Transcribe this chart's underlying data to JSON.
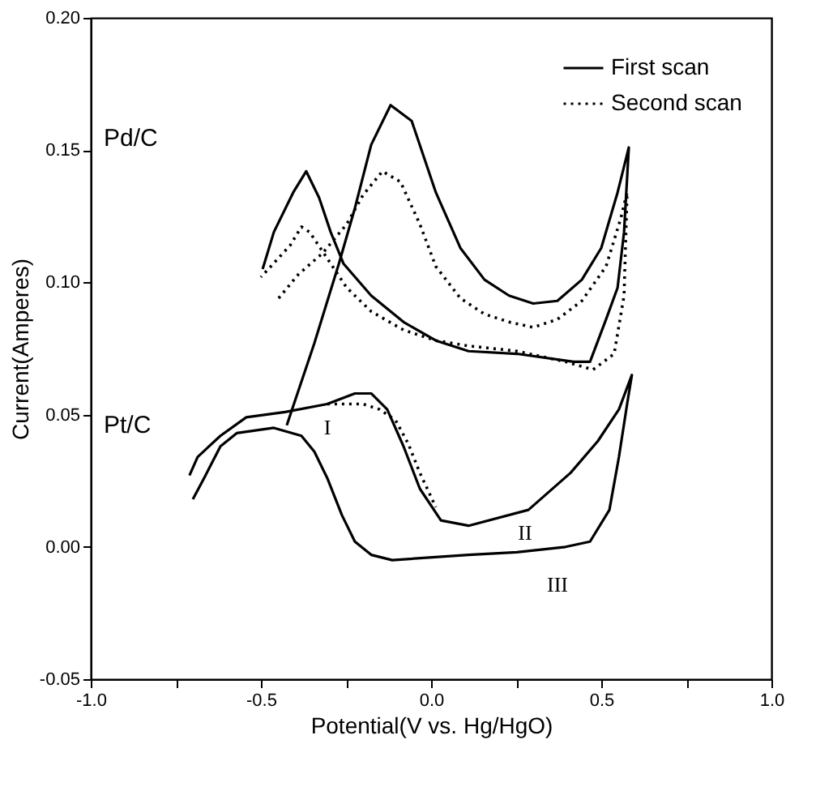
{
  "chart_data": {
    "type": "line",
    "xlabel": "Potential(V vs. Hg/HgO)",
    "ylabel": "Current(Amperes)",
    "xlim": [
      -1.0,
      1.0
    ],
    "xticks": [
      {
        "value": -1.0,
        "label": "-1.0"
      },
      {
        "value": -0.75,
        "label": null
      },
      {
        "value": -0.5,
        "label": "-0.5"
      },
      {
        "value": -0.25,
        "label": null
      },
      {
        "value": 0.0,
        "label": "0.0"
      },
      {
        "value": 0.25,
        "label": null
      },
      {
        "value": 0.5,
        "label": "0.5"
      },
      {
        "value": 0.75,
        "label": null
      },
      {
        "value": 1.0,
        "label": "1.0"
      }
    ],
    "ylim": [
      -0.05,
      0.2
    ],
    "yticks": [
      {
        "value": -0.05,
        "label": "-0.05"
      },
      {
        "value": 0.0,
        "label": "0.00"
      },
      {
        "value": 0.05,
        "label": "0.05"
      },
      {
        "value": 0.1,
        "label": "0.10"
      },
      {
        "value": 0.15,
        "label": "0.15"
      },
      {
        "value": 0.2,
        "label": "0.20"
      }
    ],
    "grid": false,
    "legend": "top right",
    "marker": "none",
    "series": [
      {
        "name": "First scan",
        "color": "#000000",
        "line_style": "solid",
        "x": [
          -0.424,
          -0.343,
          -0.271,
          -0.224,
          -0.176,
          -0.119,
          -0.057,
          0.014,
          0.086,
          0.157,
          0.229,
          0.3,
          0.371,
          0.443,
          0.5,
          0.548,
          0.581,
          0.567,
          0.548,
          0.514,
          0.467,
          0.419,
          0.252,
          0.11,
          0.014,
          -0.081,
          -0.176,
          -0.257,
          -0.295,
          -0.329,
          -0.367,
          -0.405,
          -0.462,
          -0.495
        ],
        "values": [
          0.046,
          0.077,
          0.107,
          0.128,
          0.152,
          0.167,
          0.161,
          0.134,
          0.113,
          0.101,
          0.095,
          0.092,
          0.093,
          0.101,
          0.113,
          0.134,
          0.151,
          0.119,
          0.098,
          0.086,
          0.07,
          0.07,
          0.073,
          0.074,
          0.078,
          0.085,
          0.095,
          0.107,
          0.119,
          0.132,
          0.142,
          0.134,
          0.119,
          0.105
        ]
      },
      {
        "name": "Second scan",
        "color": "#000000",
        "line_style": "dotted",
        "x": [
          -0.448,
          -0.39,
          -0.319,
          -0.248,
          -0.2,
          -0.143,
          -0.09,
          -0.033,
          0.014,
          0.086,
          0.157,
          0.229,
          0.3,
          0.371,
          0.443,
          0.514,
          0.557,
          0.576,
          0.567,
          0.538,
          0.476,
          0.395,
          0.252,
          0.11,
          0.014,
          -0.081,
          -0.176,
          -0.248,
          -0.31,
          -0.357,
          -0.381,
          -0.414,
          -0.471,
          -0.5
        ],
        "values": [
          0.094,
          0.103,
          0.111,
          0.122,
          0.133,
          0.142,
          0.138,
          0.122,
          0.106,
          0.094,
          0.088,
          0.085,
          0.083,
          0.086,
          0.093,
          0.106,
          0.124,
          0.134,
          0.095,
          0.073,
          0.067,
          0.07,
          0.074,
          0.076,
          0.078,
          0.082,
          0.089,
          0.098,
          0.11,
          0.119,
          0.121,
          0.114,
          0.106,
          0.102
        ]
      },
      {
        "color": "#000000",
        "line_style": "solid",
        "x": [
          -0.71,
          -0.686,
          -0.619,
          -0.543,
          -0.429,
          -0.305,
          -0.224,
          -0.176,
          -0.129,
          -0.081,
          -0.033,
          0.029,
          0.11,
          0.286,
          0.41,
          0.49,
          0.552,
          0.59,
          0.576,
          0.552,
          0.524,
          0.467,
          0.395,
          0.252,
          0.11,
          -0.114,
          -0.176,
          -0.224,
          -0.262,
          -0.305,
          -0.343,
          -0.381,
          -0.462,
          -0.571,
          -0.619,
          -0.667,
          -0.7
        ],
        "values": [
          0.027,
          0.034,
          0.042,
          0.049,
          0.051,
          0.054,
          0.058,
          0.058,
          0.052,
          0.038,
          0.022,
          0.01,
          0.008,
          0.014,
          0.028,
          0.04,
          0.052,
          0.065,
          0.054,
          0.034,
          0.014,
          0.002,
          0.0,
          -0.002,
          -0.003,
          -0.005,
          -0.003,
          0.002,
          0.012,
          0.026,
          0.036,
          0.042,
          0.045,
          0.043,
          0.038,
          0.026,
          0.018
        ]
      },
      {
        "color": "#000000",
        "line_style": "dotted",
        "x": [
          -0.305,
          -0.2,
          -0.152,
          -0.105,
          -0.067,
          -0.033,
          0.014
        ],
        "values": [
          0.054,
          0.054,
          0.052,
          0.048,
          0.039,
          0.028,
          0.015
        ]
      }
    ],
    "annotations": [
      "Pd/C",
      "Pt/C",
      "I",
      "II",
      "III"
    ]
  }
}
